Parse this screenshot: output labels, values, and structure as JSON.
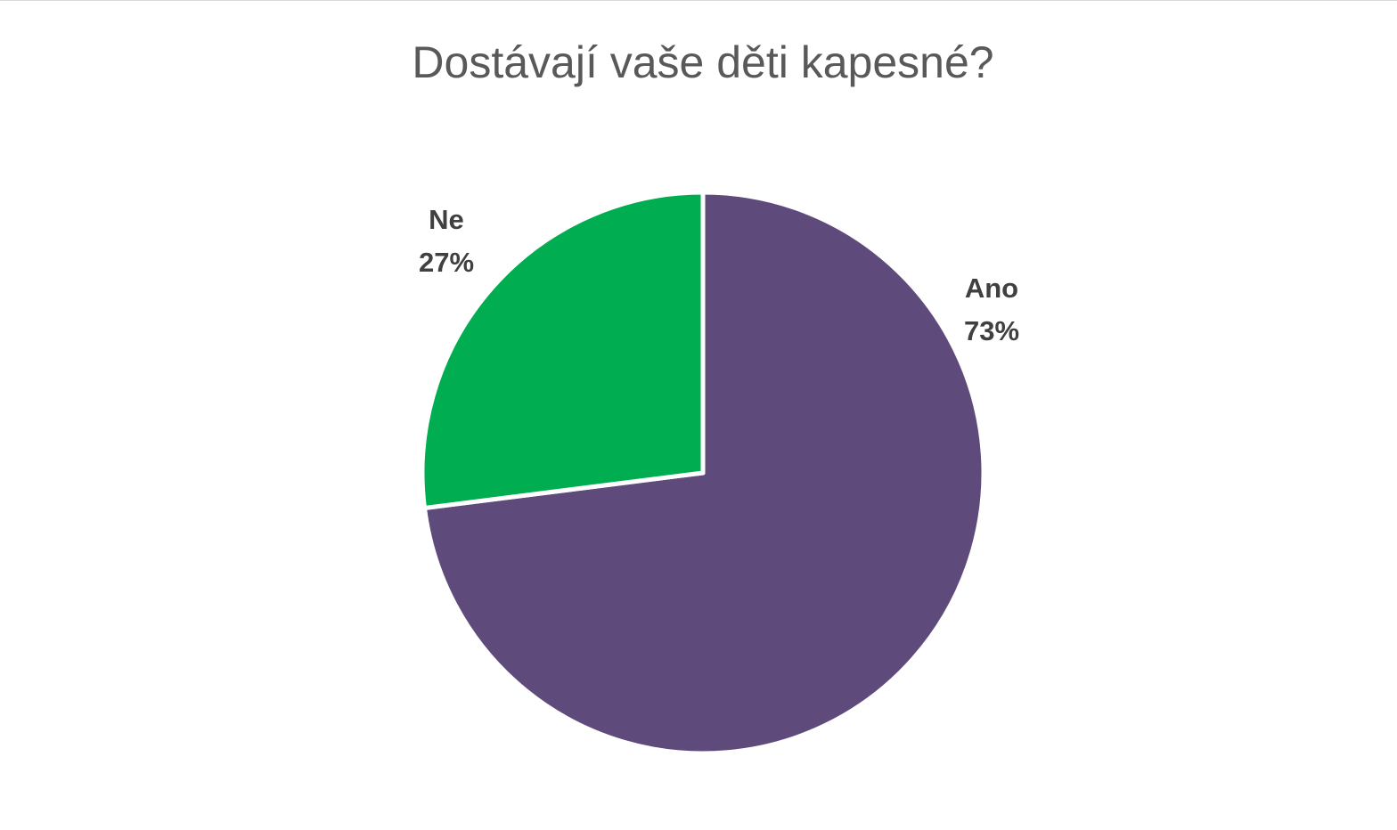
{
  "chart_data": {
    "type": "pie",
    "title": "Dostávají vaše děti kapesné?",
    "categories": [
      "Ano",
      "Ne"
    ],
    "values": [
      73,
      27
    ],
    "value_labels": [
      "73%",
      "27%"
    ],
    "colors": [
      "#5f4b7b",
      "#00ad50"
    ]
  }
}
